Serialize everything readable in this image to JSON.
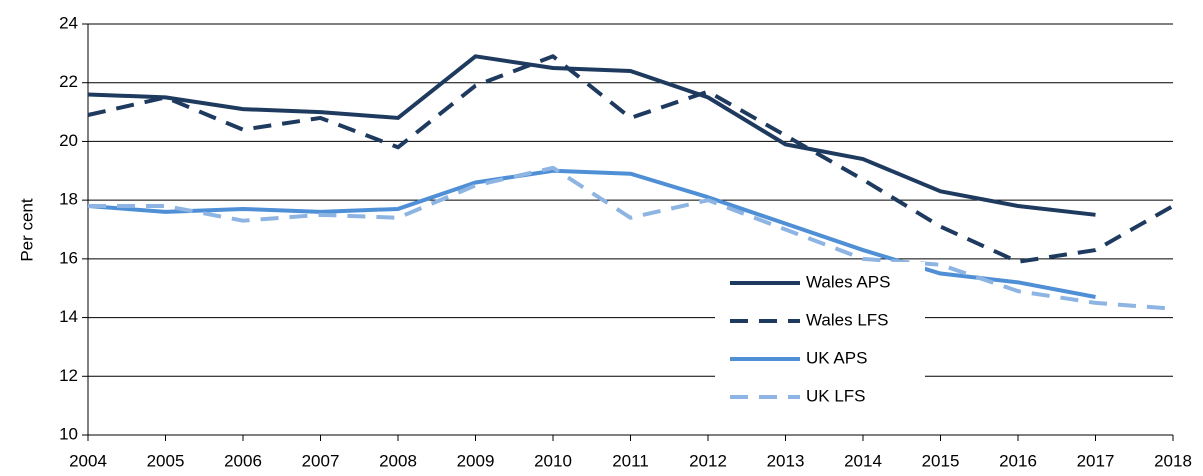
{
  "chart_data": {
    "type": "line",
    "y_label": "Per cent",
    "x": [
      2004,
      2005,
      2006,
      2007,
      2008,
      2009,
      2010,
      2011,
      2012,
      2013,
      2014,
      2015,
      2016,
      2017,
      2018
    ],
    "xlim": [
      2004,
      2018
    ],
    "xticks": [
      2004,
      2005,
      2006,
      2007,
      2008,
      2009,
      2010,
      2011,
      2012,
      2013,
      2014,
      2015,
      2016,
      2017,
      2018
    ],
    "ylim": [
      10,
      24
    ],
    "yticks": [
      10,
      12,
      14,
      16,
      18,
      20,
      22,
      24
    ],
    "grid": true,
    "series": [
      {
        "name": "Wales APS",
        "color": "#1f3a5f",
        "style": "solid",
        "values": [
          21.6,
          21.5,
          21.1,
          21.0,
          20.8,
          22.9,
          22.5,
          22.4,
          21.5,
          19.9,
          19.4,
          18.3,
          17.8,
          17.5,
          null
        ]
      },
      {
        "name": "Wales LFS",
        "color": "#1f3a5f",
        "style": "dashed",
        "values": [
          20.9,
          21.5,
          20.4,
          20.8,
          19.8,
          21.9,
          22.9,
          20.8,
          21.7,
          20.2,
          18.7,
          17.1,
          15.9,
          16.3,
          17.8
        ]
      },
      {
        "name": "UK APS",
        "color": "#4f8fd6",
        "style": "solid",
        "values": [
          17.8,
          17.6,
          17.7,
          17.6,
          17.7,
          18.6,
          19.0,
          18.9,
          18.1,
          17.2,
          16.3,
          15.5,
          15.2,
          14.7,
          null
        ]
      },
      {
        "name": "UK LFS",
        "color": "#8db4e2",
        "style": "dashed",
        "values": [
          17.8,
          17.8,
          17.3,
          17.5,
          17.4,
          18.5,
          19.1,
          17.4,
          18.0,
          17.0,
          16.0,
          15.8,
          14.9,
          14.5,
          14.3
        ]
      }
    ]
  }
}
